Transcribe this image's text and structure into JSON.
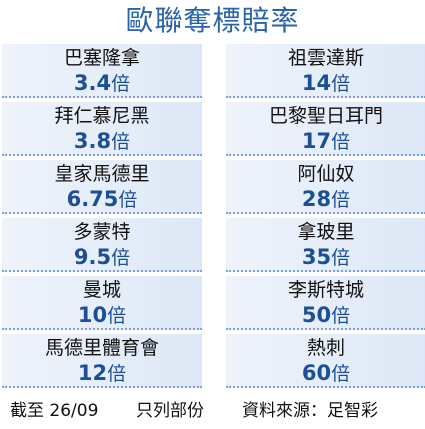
{
  "title": "歐聯奪標賠率",
  "unit": "倍",
  "left": [
    {
      "team": "巴塞隆拿",
      "odds": "3.4"
    },
    {
      "team": "拜仁慕尼黑",
      "odds": "3.8"
    },
    {
      "team": "皇家馬德里",
      "odds": "6.75"
    },
    {
      "team": "多蒙特",
      "odds": "9.5"
    },
    {
      "team": "曼城",
      "odds": "10"
    },
    {
      "team": "馬德里體育會",
      "odds": "12"
    }
  ],
  "right": [
    {
      "team": "祖雲達斯",
      "odds": "14"
    },
    {
      "team": "巴黎聖日耳門",
      "odds": "17"
    },
    {
      "team": "阿仙奴",
      "odds": "28"
    },
    {
      "team": "拿玻里",
      "odds": "35"
    },
    {
      "team": "李斯特城",
      "odds": "50"
    },
    {
      "team": "熱刺",
      "odds": "60"
    }
  ],
  "footer": {
    "date": "截至 26/09",
    "partial": "只列部份",
    "source": "資料來源：足智彩"
  }
}
